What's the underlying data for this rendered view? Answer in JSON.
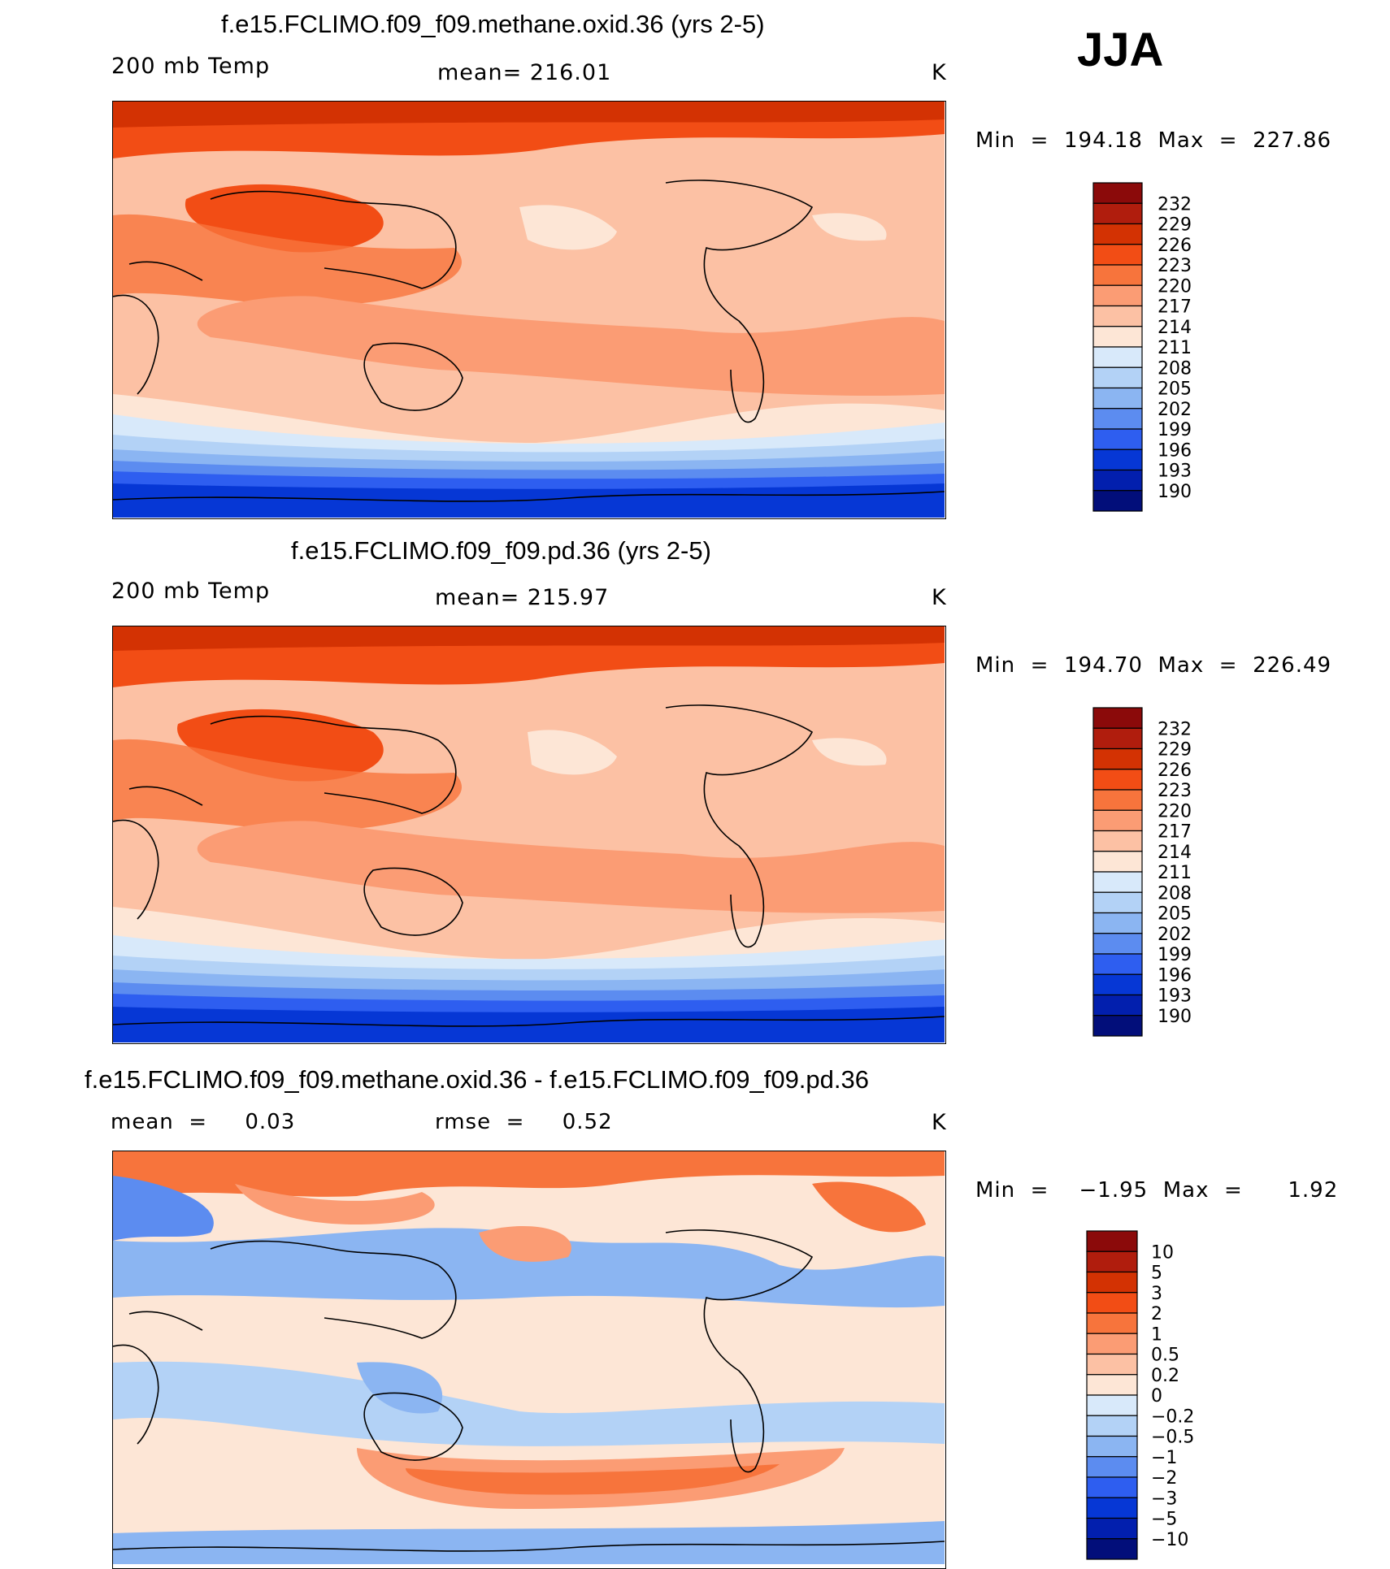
{
  "season": "JJA",
  "chart_data": [
    {
      "type": "heatmap",
      "title": "f.e15.FCLIMO.f09_f09.methane.oxid.36 (yrs 2-5)",
      "left_label": "200 mb Temp",
      "center_label": "mean=  216.01",
      "units": "K",
      "stats_label": "Min  =  194.18  Max  =  227.86",
      "min": 194.18,
      "max": 227.86,
      "mean": 216.01,
      "colorbar": {
        "labels": [
          "232",
          "229",
          "226",
          "223",
          "220",
          "217",
          "214",
          "211",
          "208",
          "205",
          "202",
          "199",
          "196",
          "193",
          "190"
        ],
        "colors": [
          "#8b0a0a",
          "#b01d0d",
          "#d33203",
          "#f24d15",
          "#f7743c",
          "#fb9c74",
          "#fcc1a4",
          "#fde6d6",
          "#d8e9fa",
          "#b3d2f6",
          "#8bb5f2",
          "#5c8cf0",
          "#2e5ef0",
          "#0637d5",
          "#021fae",
          "#020e7a"
        ]
      }
    },
    {
      "type": "heatmap",
      "title": "f.e15.FCLIMO.f09_f09.pd.36 (yrs 2-5)",
      "left_label": "200 mb Temp",
      "center_label": "mean=  215.97",
      "units": "K",
      "stats_label": "Min  =  194.70  Max  =  226.49",
      "min": 194.7,
      "max": 226.49,
      "mean": 215.97,
      "colorbar": {
        "labels": [
          "232",
          "229",
          "226",
          "223",
          "220",
          "217",
          "214",
          "211",
          "208",
          "205",
          "202",
          "199",
          "196",
          "193",
          "190"
        ],
        "colors": [
          "#8b0a0a",
          "#b01d0d",
          "#d33203",
          "#f24d15",
          "#f7743c",
          "#fb9c74",
          "#fcc1a4",
          "#fde6d6",
          "#d8e9fa",
          "#b3d2f6",
          "#8bb5f2",
          "#5c8cf0",
          "#2e5ef0",
          "#0637d5",
          "#021fae",
          "#020e7a"
        ]
      }
    },
    {
      "type": "heatmap",
      "title": "f.e15.FCLIMO.f09_f09.methane.oxid.36 - f.e15.FCLIMO.f09_f09.pd.36",
      "left_label": "mean  =     0.03",
      "center_label": "rmse  =     0.52",
      "units": "K",
      "stats_label": "Min  =    −1.95  Max  =      1.92",
      "min": -1.95,
      "max": 1.92,
      "mean": 0.03,
      "rmse": 0.52,
      "colorbar": {
        "labels": [
          "10",
          "5",
          "3",
          "2",
          "1",
          "0.5",
          "0.2",
          "0",
          "−0.2",
          "−0.5",
          "−1",
          "−2",
          "−3",
          "−5",
          "−10"
        ],
        "colors": [
          "#8b0a0a",
          "#b01d0d",
          "#d33203",
          "#f24d15",
          "#f7743c",
          "#fb9c74",
          "#fcc1a4",
          "#fde6d6",
          "#d8e9fa",
          "#b3d2f6",
          "#8bb5f2",
          "#5c8cf0",
          "#2e5ef0",
          "#0637d5",
          "#021fae",
          "#020e7a"
        ]
      }
    }
  ]
}
